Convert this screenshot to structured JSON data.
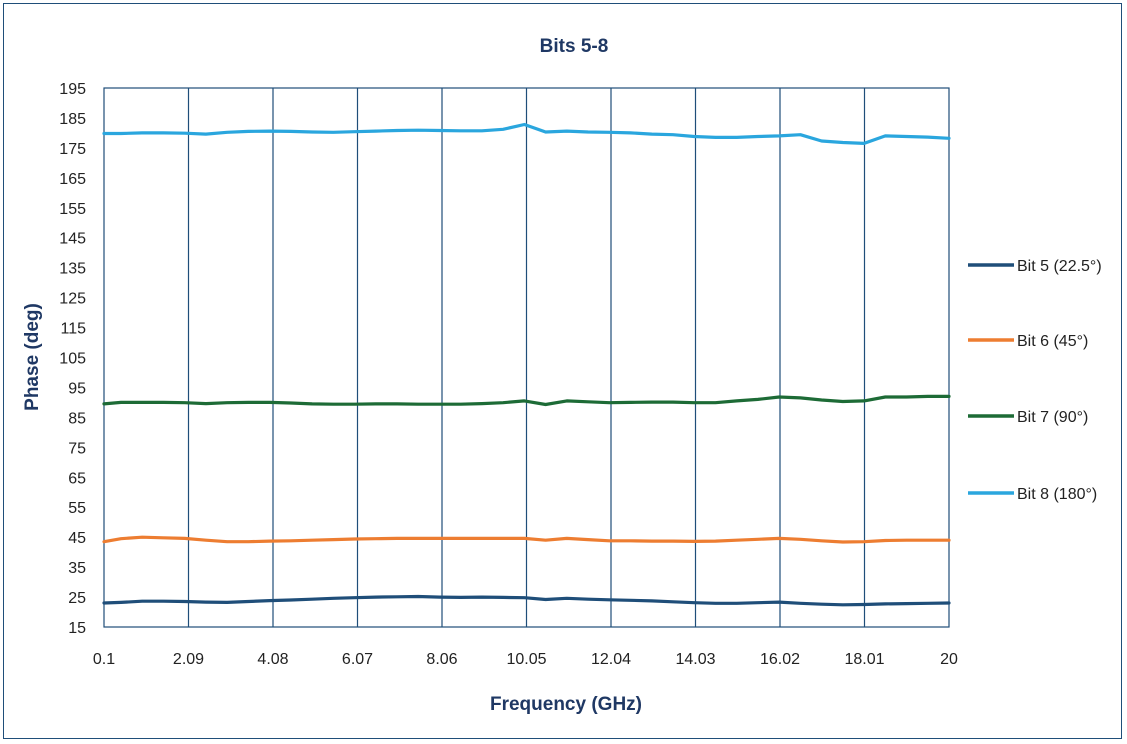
{
  "chart_data": {
    "type": "line",
    "title": "Bits 5-8",
    "xlabel": "Frequency (GHz)",
    "ylabel": "Phase (deg)",
    "xlim": [
      0.1,
      20
    ],
    "ylim": [
      15,
      195
    ],
    "xticks": [
      "0.1",
      "2.09",
      "4.08",
      "6.07",
      "8.06",
      "10.05",
      "12.04",
      "14.03",
      "16.02",
      "18.01",
      "20"
    ],
    "yticks": [
      15,
      25,
      35,
      45,
      55,
      65,
      75,
      85,
      95,
      105,
      115,
      125,
      135,
      145,
      155,
      165,
      175,
      185,
      195
    ],
    "grid": "vertical",
    "legend_position": "right",
    "x": [
      0.1,
      0.5,
      1.0,
      1.5,
      2.0,
      2.5,
      3.0,
      3.5,
      4.0,
      4.5,
      5.0,
      5.5,
      6.0,
      6.5,
      7.0,
      7.5,
      8.0,
      8.5,
      9.0,
      9.5,
      10.0,
      10.5,
      11.0,
      11.5,
      12.0,
      12.5,
      13.0,
      13.5,
      14.0,
      14.5,
      15.0,
      15.5,
      16.0,
      16.5,
      17.0,
      17.5,
      18.0,
      18.5,
      19.0,
      19.5,
      20.0
    ],
    "series": [
      {
        "name": "Bit 5 (22.5°)",
        "color": "#1f4e79",
        "values": [
          23.0,
          23.2,
          23.6,
          23.6,
          23.5,
          23.3,
          23.2,
          23.5,
          23.8,
          24.0,
          24.3,
          24.6,
          24.8,
          25.0,
          25.1,
          25.2,
          25.0,
          24.9,
          25.0,
          24.9,
          24.8,
          24.2,
          24.6,
          24.3,
          24.1,
          23.9,
          23.7,
          23.4,
          23.1,
          22.9,
          22.9,
          23.1,
          23.3,
          22.9,
          22.6,
          22.4,
          22.5,
          22.7,
          22.8,
          22.9,
          23.0
        ]
      },
      {
        "name": "Bit 6 (45°)",
        "color": "#ed7d31",
        "values": [
          43.5,
          44.5,
          45.0,
          44.8,
          44.6,
          44.0,
          43.5,
          43.5,
          43.7,
          43.8,
          44.0,
          44.2,
          44.4,
          44.5,
          44.6,
          44.6,
          44.6,
          44.6,
          44.6,
          44.6,
          44.6,
          44.0,
          44.6,
          44.2,
          43.8,
          43.8,
          43.7,
          43.7,
          43.6,
          43.7,
          44.0,
          44.3,
          44.6,
          44.3,
          43.8,
          43.4,
          43.5,
          43.9,
          44.0,
          44.0,
          44.0
        ]
      },
      {
        "name": "Bit 7 (90°)",
        "color": "#1d6b36",
        "values": [
          89.5,
          90.0,
          90.0,
          90.0,
          89.9,
          89.6,
          89.9,
          90.0,
          90.0,
          89.8,
          89.5,
          89.4,
          89.4,
          89.5,
          89.5,
          89.4,
          89.4,
          89.4,
          89.6,
          89.9,
          90.5,
          89.3,
          90.5,
          90.2,
          89.9,
          90.0,
          90.1,
          90.1,
          89.9,
          89.9,
          90.5,
          91.0,
          91.8,
          91.5,
          90.8,
          90.3,
          90.5,
          91.8,
          91.8,
          92.0,
          92.0
        ]
      },
      {
        "name": "Bit 8 (180°)",
        "color": "#2aa6de",
        "values": [
          179.8,
          179.8,
          180.0,
          180.0,
          179.9,
          179.6,
          180.2,
          180.5,
          180.6,
          180.5,
          180.3,
          180.2,
          180.4,
          180.6,
          180.8,
          180.9,
          180.8,
          180.7,
          180.7,
          181.2,
          182.8,
          180.3,
          180.6,
          180.3,
          180.2,
          180.0,
          179.6,
          179.4,
          178.8,
          178.5,
          178.5,
          178.8,
          179.0,
          179.4,
          177.3,
          176.8,
          176.5,
          179.0,
          178.8,
          178.6,
          178.2
        ]
      }
    ]
  }
}
